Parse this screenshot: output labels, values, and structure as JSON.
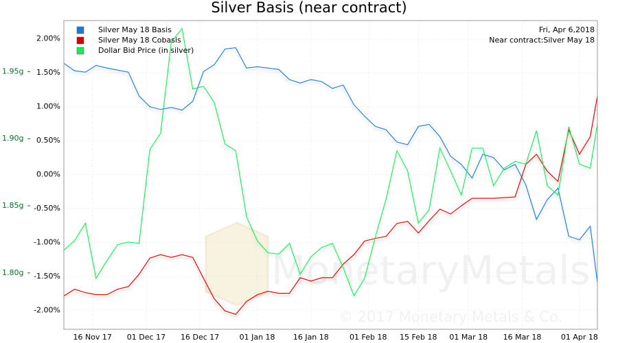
{
  "chart_data": {
    "type": "line",
    "title": "Silver Basis (near contract)",
    "annotations": [
      "Fri, Apr 6,2018",
      "Near contract:Silver May 18"
    ],
    "watermark": "MonetaryMetals",
    "copyright": "© 2017 Monetary Metals & Co.",
    "grid": true,
    "legend": "top-left",
    "xlim": [
      "2017-11-08",
      "2018-04-06"
    ],
    "xticks": [
      {
        "value": "2017-11-16",
        "label": "16 Nov 17"
      },
      {
        "value": "2017-12-01",
        "label": "01 Dec 17"
      },
      {
        "value": "2017-12-16",
        "label": "16 Dec 17"
      },
      {
        "value": "2018-01-01",
        "label": "01 Jan 18"
      },
      {
        "value": "2018-01-16",
        "label": "16 Jan 18"
      },
      {
        "value": "2018-02-01",
        "label": "01 Feb 18"
      },
      {
        "value": "2018-02-15",
        "label": "15 Feb 18"
      },
      {
        "value": "2018-03-01",
        "label": "01 Mar 18"
      },
      {
        "value": "2018-03-16",
        "label": "16 Mar 18"
      },
      {
        "value": "2018-04-01",
        "label": "01 Apr 18"
      }
    ],
    "ylim": [
      -2.28,
      2.27
    ],
    "yticks": [
      {
        "value": 2,
        "label": "2.00%"
      },
      {
        "value": 1.5,
        "label": "1.50%"
      },
      {
        "value": 1,
        "label": "1.00%"
      },
      {
        "value": 0.5,
        "label": "0.50%"
      },
      {
        "value": 0,
        "label": "0.00%"
      },
      {
        "value": -0.5,
        "label": "-0.50%"
      },
      {
        "value": -1,
        "label": "-1.00%"
      },
      {
        "value": -1.5,
        "label": "-1.50%"
      },
      {
        "value": -2,
        "label": "-2.00%"
      }
    ],
    "y2lim": [
      1.758,
      1.988
    ],
    "y2ticks": [
      {
        "value": 1.95,
        "label": "1.95g"
      },
      {
        "value": 1.9,
        "label": "1.90g"
      },
      {
        "value": 1.85,
        "label": "1.85g"
      },
      {
        "value": 1.8,
        "label": "1.80g"
      }
    ],
    "x": [
      "2017-11-08",
      "2017-11-11",
      "2017-11-14",
      "2017-11-17",
      "2017-11-20",
      "2017-11-23",
      "2017-11-26",
      "2017-11-29",
      "2017-12-02",
      "2017-12-05",
      "2017-12-08",
      "2017-12-11",
      "2017-12-14",
      "2017-12-17",
      "2017-12-20",
      "2017-12-23",
      "2017-12-26",
      "2017-12-29",
      "2018-01-01",
      "2018-01-04",
      "2018-01-07",
      "2018-01-10",
      "2018-01-13",
      "2018-01-16",
      "2018-01-19",
      "2018-01-22",
      "2018-01-25",
      "2018-01-28",
      "2018-01-31",
      "2018-02-03",
      "2018-02-06",
      "2018-02-09",
      "2018-02-12",
      "2018-02-15",
      "2018-02-18",
      "2018-02-21",
      "2018-02-24",
      "2018-02-27",
      "2018-03-02",
      "2018-03-05",
      "2018-03-08",
      "2018-03-11",
      "2018-03-14",
      "2018-03-17",
      "2018-03-20",
      "2018-03-23",
      "2018-03-26",
      "2018-03-29",
      "2018-04-01",
      "2018-04-04",
      "2018-04-06"
    ],
    "series": [
      {
        "name": "Silver May 18 Basis",
        "color": "#1f78d1",
        "values": [
          1.64,
          1.53,
          1.51,
          1.61,
          1.57,
          1.54,
          1.51,
          1.16,
          1.0,
          0.96,
          0.99,
          0.95,
          1.08,
          1.52,
          1.62,
          1.85,
          1.87,
          1.57,
          1.59,
          1.57,
          1.55,
          1.4,
          1.35,
          1.4,
          1.37,
          1.27,
          1.32,
          1.03,
          0.86,
          0.71,
          0.66,
          0.48,
          0.44,
          0.71,
          0.74,
          0.56,
          0.27,
          0.15,
          -0.05,
          0.3,
          0.25,
          0.07,
          0.15,
          -0.15,
          -0.66,
          -0.37,
          -0.2,
          -0.91,
          -0.96,
          -0.76,
          -1.59
        ]
      },
      {
        "name": "Silver May 18 Cobasis",
        "color": "#d40000",
        "values": [
          -1.79,
          -1.69,
          -1.74,
          -1.77,
          -1.77,
          -1.69,
          -1.65,
          -1.47,
          -1.23,
          -1.18,
          -1.22,
          -1.18,
          -1.22,
          -1.53,
          -1.83,
          -2.01,
          -2.06,
          -1.87,
          -1.77,
          -1.72,
          -1.75,
          -1.75,
          -1.52,
          -1.57,
          -1.52,
          -1.52,
          -1.32,
          -1.18,
          -0.98,
          -0.94,
          -0.91,
          -0.72,
          -0.69,
          -0.86,
          -0.68,
          -0.51,
          -0.58,
          -0.46,
          -0.35,
          -0.35,
          -0.35,
          -0.34,
          -0.33,
          0.15,
          0.3,
          0.05,
          -0.1,
          0.66,
          0.3,
          0.56,
          1.16
        ]
      },
      {
        "name": "Dollar Bid Price (in silver)",
        "color": "#22e65a",
        "axis": "y2",
        "values": [
          1.817,
          1.824,
          1.837,
          1.796,
          1.809,
          1.821,
          1.823,
          1.822,
          1.892,
          1.904,
          1.972,
          1.982,
          1.937,
          1.939,
          1.927,
          1.896,
          1.891,
          1.842,
          1.824,
          1.815,
          1.814,
          1.822,
          1.799,
          1.812,
          1.819,
          1.822,
          1.804,
          1.783,
          1.796,
          1.827,
          1.855,
          1.891,
          1.876,
          1.837,
          1.847,
          1.893,
          1.876,
          1.858,
          1.893,
          1.893,
          1.865,
          1.878,
          1.883,
          1.881,
          1.906,
          1.865,
          1.858,
          1.909,
          1.881,
          1.878,
          1.911
        ]
      }
    ]
  }
}
